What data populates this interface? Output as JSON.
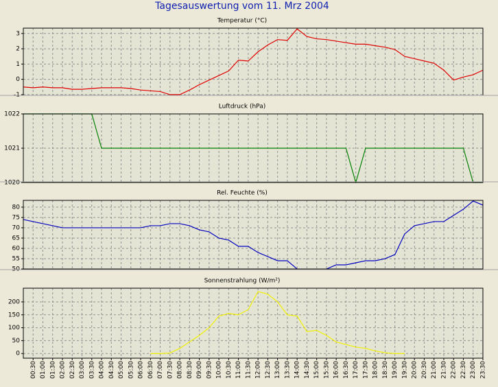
{
  "title": "Tagesauswertung vom 11. Mrz 2004",
  "chart_data": [
    {
      "type": "line",
      "title": "Temperatur (°C)",
      "color": "#e00000",
      "grid": true,
      "ylim": [
        -1.05,
        3.35
      ],
      "yticks": [
        -1,
        0,
        1,
        2,
        3
      ],
      "values": [
        -0.5,
        -0.55,
        -0.5,
        -0.55,
        -0.55,
        -0.65,
        -0.65,
        -0.6,
        -0.55,
        -0.55,
        -0.55,
        -0.6,
        -0.7,
        -0.75,
        -0.8,
        -1.0,
        -1.0,
        -0.7,
        -0.35,
        -0.05,
        0.25,
        0.55,
        1.25,
        1.2,
        1.8,
        2.25,
        2.6,
        2.55,
        3.3,
        2.8,
        2.65,
        2.6,
        2.5,
        2.4,
        2.3,
        2.3,
        2.2,
        2.1,
        1.95,
        1.5,
        1.35,
        1.2,
        1.05,
        0.6,
        -0.05,
        0.15,
        0.3,
        0.6
      ]
    },
    {
      "type": "line",
      "title": "Luftdruck (hPa)",
      "color": "#008000",
      "grid": true,
      "ylim": [
        1020,
        1022
      ],
      "yticks": [
        1020,
        1021,
        1022
      ],
      "values": [
        1022,
        1022,
        1022,
        1022,
        1022,
        1022,
        1022,
        1022,
        1021,
        1021,
        1021,
        1021,
        1021,
        1021,
        1021,
        1021,
        1021,
        1021,
        1021,
        1021,
        1021,
        1021,
        1021,
        1021,
        1021,
        1021,
        1021,
        1021,
        1021,
        1021,
        1021,
        1021,
        1021,
        1021,
        1020,
        1021,
        1021,
        1021,
        1021,
        1021,
        1021,
        1021,
        1021,
        1021,
        1021,
        1021,
        1020,
        1020
      ]
    },
    {
      "type": "line",
      "title": "Rel. Feuchte (%)",
      "color": "#0000c0",
      "grid": true,
      "ylim": [
        50,
        83.3
      ],
      "yticks": [
        50,
        55,
        60,
        65,
        70,
        75,
        80
      ],
      "values": [
        74,
        73,
        72,
        71,
        70,
        70,
        70,
        70,
        70,
        70,
        70,
        70,
        70,
        71,
        71,
        72,
        72,
        71,
        69,
        68,
        65,
        64,
        61,
        61,
        58,
        56,
        54,
        54,
        50,
        49,
        49,
        50,
        52,
        52,
        53,
        54,
        54,
        55,
        57,
        67,
        71,
        72,
        73,
        73,
        76,
        79,
        83,
        81
      ]
    },
    {
      "type": "line",
      "title": "Sonnenstrahlung (W/m²)",
      "color": "#f0f000",
      "grid": true,
      "ylim": [
        -18,
        253
      ],
      "yticks": [
        0,
        50,
        100,
        150,
        200
      ],
      "values": [
        null,
        null,
        null,
        null,
        null,
        null,
        null,
        null,
        null,
        null,
        null,
        null,
        null,
        0,
        0,
        2,
        20,
        45,
        70,
        100,
        145,
        155,
        150,
        170,
        240,
        230,
        200,
        150,
        145,
        85,
        90,
        70,
        45,
        35,
        25,
        20,
        10,
        3,
        0,
        0,
        null,
        null,
        null,
        null,
        null,
        null,
        null,
        null
      ],
      "categories": [
        null,
        "00:30",
        "01:00",
        "01:30",
        "02:00",
        "02:30",
        "03:00",
        "03:30",
        "04:00",
        "04:30",
        "05:00",
        "05:30",
        "06:00",
        "06:30",
        "07:00",
        "07:30",
        "08:00",
        "08:30",
        "09:00",
        "09:30",
        "10:00",
        "10:30",
        "11:00",
        "11:30",
        "12:00",
        "12:30",
        "13:00",
        "13:30",
        "14:00",
        "14:30",
        "15:00",
        "15:30",
        "16:00",
        "16:30",
        "17:00",
        "17:30",
        "18:00",
        "18:30",
        "19:00",
        "19:30",
        "20:00",
        "20:30",
        "21:00",
        "21:30",
        "22:00",
        "22:30",
        "23:00",
        "23:30"
      ]
    }
  ]
}
